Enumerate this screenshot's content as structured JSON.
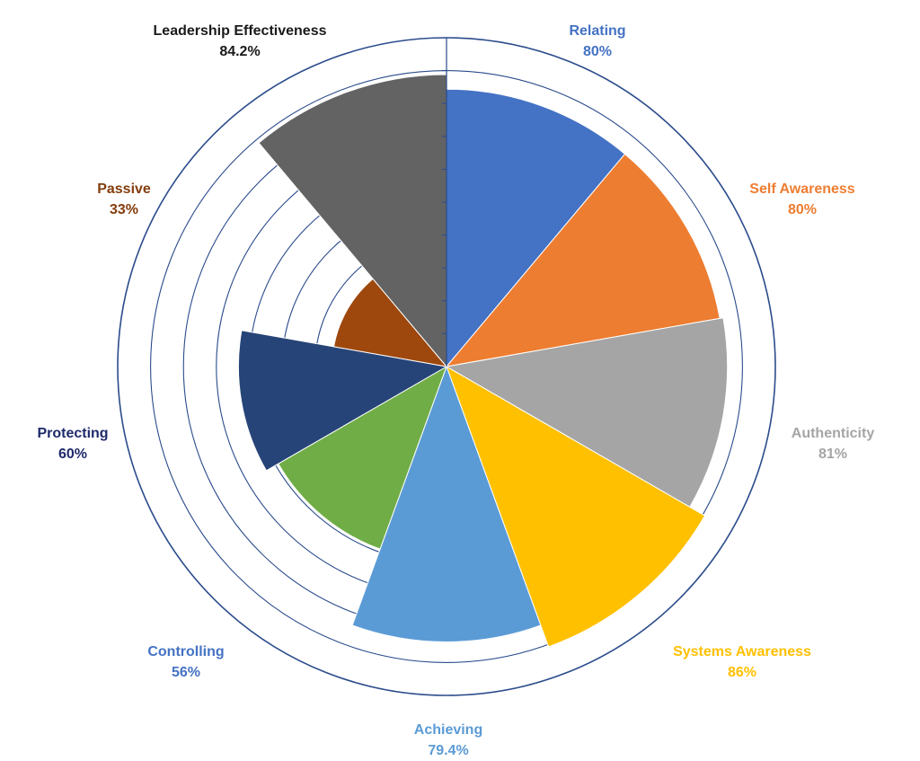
{
  "chart_data": {
    "type": "polar-area",
    "title": "",
    "scale_max": 100,
    "rings": 10,
    "segments": [
      {
        "name": "Relating",
        "value_label": "80%",
        "value": 80,
        "color": "#4472C4",
        "label_color": "#4472C4"
      },
      {
        "name": "Self Awareness",
        "value_label": "80%",
        "value": 80,
        "color": "#ED7D31",
        "label_color": "#ED7D31"
      },
      {
        "name": "Authenticity",
        "value_label": "81%",
        "value": 81,
        "color": "#A5A5A5",
        "label_color": "#A5A5A5"
      },
      {
        "name": "Systems Awareness",
        "value_label": "86%",
        "value": 86,
        "color": "#FFC000",
        "label_color": "#FFC000"
      },
      {
        "name": "Achieving",
        "value_label": "79.4%",
        "value": 79.4,
        "color": "#5B9BD5",
        "label_color": "#5B9BD5"
      },
      {
        "name": "Controlling",
        "value_label": "56%",
        "value": 56,
        "color": "#70AD47",
        "label_color": "#4472C4"
      },
      {
        "name": "Protecting",
        "value_label": "60%",
        "value": 60,
        "color": "#264478",
        "label_color": "#1F2A6B"
      },
      {
        "name": "Passive",
        "value_label": "33%",
        "value": 33,
        "color": "#9E480E",
        "label_color": "#843C0C"
      },
      {
        "name": "Leadership Effectiveness",
        "value_label": "84.2%",
        "value": 84.2,
        "color": "#636363",
        "label_color": "#1A1A1A"
      }
    ]
  }
}
